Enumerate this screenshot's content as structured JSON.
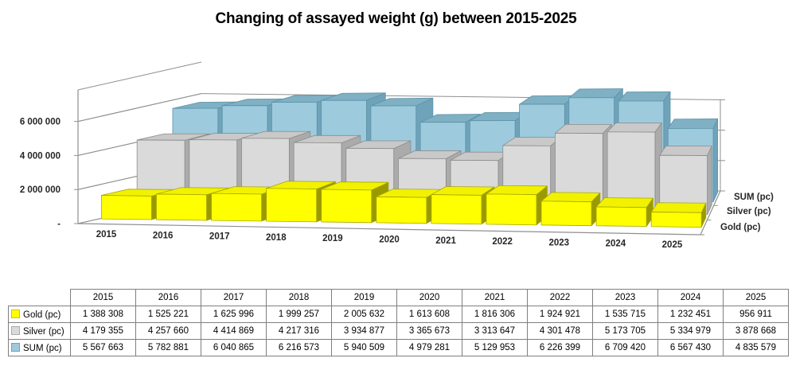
{
  "title": "Changing of assayed weight (g) between 2015-2025",
  "chart_data": {
    "type": "bar",
    "subtype": "3d-column-perspective",
    "title": "Changing of assayed weight (g) between 2015-2025",
    "categories": [
      "2015",
      "2016",
      "2017",
      "2018",
      "2019",
      "2020",
      "2021",
      "2022",
      "2023",
      "2024",
      "2025"
    ],
    "series": [
      {
        "name": "Gold (pc)",
        "values": [
          1388308,
          1525221,
          1625996,
          1999257,
          2005632,
          1613608,
          1816306,
          1924921,
          1535715,
          1232451,
          956911
        ],
        "colors": {
          "front": "#FFFF00",
          "top": "#F2F200",
          "side": "#9A9A00",
          "stroke": "#A8A800"
        }
      },
      {
        "name": "Silver (pc)",
        "values": [
          4179355,
          4257660,
          4414869,
          4217316,
          3934877,
          3365673,
          3313647,
          4301478,
          5173705,
          5334979,
          3878668
        ],
        "colors": {
          "front": "#DADADA",
          "top": "#C9C9C9",
          "side": "#ABABAB",
          "stroke": "#8C8C8C"
        }
      },
      {
        "name": "SUM (pc)",
        "values": [
          5567663,
          5782881,
          6040865,
          6216573,
          5940509,
          4979281,
          5129953,
          6226399,
          6709420,
          6567430,
          4835579
        ],
        "colors": {
          "front": "#9DCBDD",
          "top": "#7FB0C4",
          "side": "#6FA3B9",
          "stroke": "#5D93A8"
        }
      }
    ],
    "value_axis": {
      "tick_values": [
        0,
        2000000,
        4000000,
        6000000
      ],
      "tick_labels": [
        "-",
        "2 000 000",
        "4 000 000",
        "6 000 000"
      ],
      "max": 7800000
    },
    "series_axis_labels": [
      "Gold (pc)",
      "Silver (pc)",
      "SUM (pc)"
    ],
    "grid_on": true,
    "gridline_color": "#8F8F8F",
    "legend_position": "depth-axis-right"
  },
  "table": {
    "columns": [
      "2015",
      "2016",
      "2017",
      "2018",
      "2019",
      "2020",
      "2021",
      "2022",
      "2023",
      "2024",
      "2025"
    ],
    "rows": [
      {
        "label": "Gold (pc)",
        "swatch": "#FFFF00",
        "values": [
          "1 388 308",
          "1 525 221",
          "1 625 996",
          "1 999 257",
          "2 005 632",
          "1 613 608",
          "1 816 306",
          "1 924 921",
          "1 535 715",
          "1 232 451",
          "956 911"
        ]
      },
      {
        "label": "Silver (pc)",
        "swatch": "#DADADA",
        "values": [
          "4 179 355",
          "4 257 660",
          "4 414 869",
          "4 217 316",
          "3 934 877",
          "3 365 673",
          "3 313 647",
          "4 301 478",
          "5 173 705",
          "5 334 979",
          "3 878 668"
        ]
      },
      {
        "label": "SUM (pc)",
        "swatch": "#9DCBDD",
        "values": [
          "5 567 663",
          "5 782 881",
          "6 040 865",
          "6 216 573",
          "5 940 509",
          "4 979 281",
          "5 129 953",
          "6 226 399",
          "6 709 420",
          "6 567 430",
          "4 835 579"
        ]
      }
    ]
  }
}
